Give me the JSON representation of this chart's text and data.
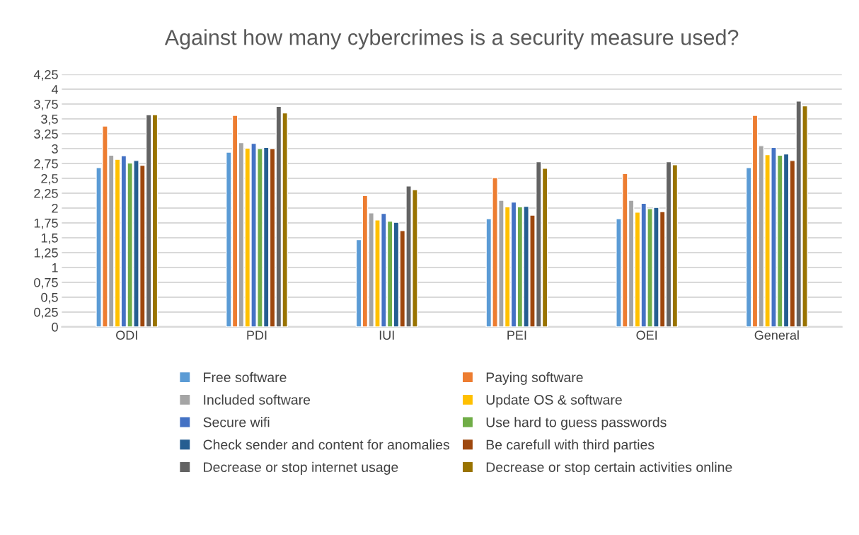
{
  "chart_data": {
    "type": "bar",
    "title": "Against how many cybercrimes is a security measure used?",
    "categories": [
      "ODI",
      "PDI",
      "IUI",
      "PEI",
      "OEI",
      "General"
    ],
    "series": [
      {
        "name": "Free software",
        "color": "#5b9bd5",
        "values": [
          2.68,
          2.94,
          1.47,
          1.82,
          1.82,
          2.68
        ]
      },
      {
        "name": "Paying software",
        "color": "#ed7d31",
        "values": [
          3.38,
          3.56,
          2.21,
          2.51,
          2.58,
          3.56
        ]
      },
      {
        "name": "Included software",
        "color": "#a5a5a5",
        "values": [
          2.89,
          3.1,
          1.92,
          2.13,
          2.13,
          3.05
        ]
      },
      {
        "name": "Update OS & software",
        "color": "#ffc000",
        "values": [
          2.82,
          3.01,
          1.8,
          2.02,
          1.93,
          2.9
        ]
      },
      {
        "name": "Secure wifi",
        "color": "#4472c4",
        "values": [
          2.88,
          3.09,
          1.91,
          2.1,
          2.08,
          3.02
        ]
      },
      {
        "name": "Use hard to guess passwords",
        "color": "#70ad47",
        "values": [
          2.76,
          3.0,
          1.78,
          2.02,
          1.99,
          2.89
        ]
      },
      {
        "name": "Check sender and content for anomalies",
        "color": "#255e91",
        "values": [
          2.8,
          3.02,
          1.76,
          2.03,
          2.01,
          2.91
        ]
      },
      {
        "name": "Be carefull with third parties",
        "color": "#9e480e",
        "values": [
          2.72,
          3.0,
          1.62,
          1.88,
          1.94,
          2.8
        ]
      },
      {
        "name": "Decrease or stop internet usage",
        "color": "#636363",
        "values": [
          3.57,
          3.71,
          2.37,
          2.78,
          2.78,
          3.8
        ]
      },
      {
        "name": "Decrease or stop certain activities online",
        "color": "#997300",
        "values": [
          3.57,
          3.6,
          2.31,
          2.67,
          2.73,
          3.72
        ]
      }
    ],
    "ylim": [
      0,
      4.25
    ],
    "yticks": [
      0,
      {
        "value": 0.25,
        "label": "0,25"
      },
      {
        "value": 0.5,
        "label": "0,5"
      },
      {
        "value": 0.75,
        "label": "0,75"
      },
      1,
      {
        "value": 1.25,
        "label": "1,25"
      },
      {
        "value": 1.5,
        "label": "1,5"
      },
      {
        "value": 1.75,
        "label": "1,75"
      },
      2,
      {
        "value": 2.25,
        "label": "2,25"
      },
      {
        "value": 2.5,
        "label": "2,5"
      },
      {
        "value": 2.75,
        "label": "2,75"
      },
      3,
      {
        "value": 3.25,
        "label": "3,25"
      },
      {
        "value": 3.5,
        "label": "3,5"
      },
      {
        "value": 3.75,
        "label": "3,75"
      },
      4,
      {
        "value": 4.25,
        "label": "4,25"
      }
    ],
    "grid": "y",
    "legend": "bottom",
    "marker": "square"
  }
}
